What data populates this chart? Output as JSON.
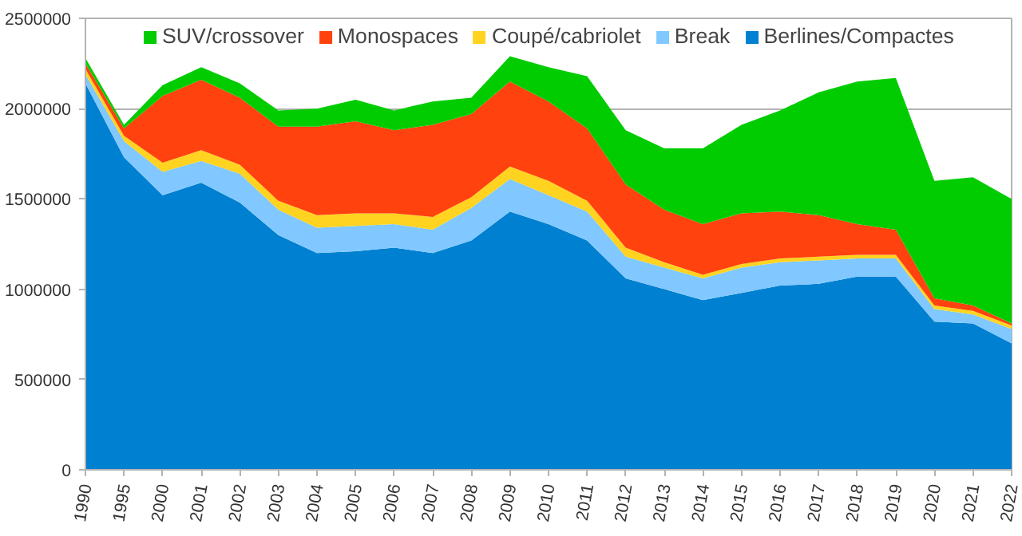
{
  "chart_data": {
    "type": "area",
    "stacked": true,
    "categories": [
      "1990",
      "1995",
      "2000",
      "2001",
      "2002",
      "2003",
      "2004",
      "2005",
      "2006",
      "2007",
      "2008",
      "2009",
      "2010",
      "2011",
      "2012",
      "2013",
      "2014",
      "2015",
      "2016",
      "2017",
      "2018",
      "2019",
      "2020",
      "2021",
      "2022"
    ],
    "series": [
      {
        "name": "Berlines/Compactes",
        "color": "#0080d0",
        "values": [
          2140000,
          1730000,
          1520000,
          1590000,
          1480000,
          1300000,
          1200000,
          1210000,
          1230000,
          1200000,
          1270000,
          1430000,
          1360000,
          1270000,
          1060000,
          1000000,
          940000,
          980000,
          1020000,
          1030000,
          1070000,
          1070000,
          820000,
          810000,
          700000
        ]
      },
      {
        "name": "Break",
        "color": "#80c8ff",
        "values": [
          50000,
          90000,
          130000,
          120000,
          160000,
          140000,
          140000,
          140000,
          130000,
          130000,
          180000,
          180000,
          160000,
          160000,
          120000,
          120000,
          120000,
          140000,
          130000,
          130000,
          100000,
          100000,
          70000,
          50000,
          80000
        ]
      },
      {
        "name": "Coupé/cabriolet",
        "color": "#ffd320",
        "values": [
          30000,
          30000,
          50000,
          60000,
          50000,
          50000,
          70000,
          70000,
          60000,
          70000,
          60000,
          70000,
          80000,
          60000,
          50000,
          30000,
          20000,
          20000,
          20000,
          20000,
          20000,
          20000,
          20000,
          20000,
          20000
        ]
      },
      {
        "name": "Monospaces",
        "color": "#ff420e",
        "values": [
          30000,
          40000,
          370000,
          390000,
          370000,
          410000,
          490000,
          510000,
          460000,
          510000,
          460000,
          470000,
          440000,
          400000,
          350000,
          290000,
          280000,
          280000,
          260000,
          230000,
          170000,
          140000,
          40000,
          30000,
          10000
        ]
      },
      {
        "name": "SUV/crossover",
        "color": "#00cc00",
        "values": [
          30000,
          20000,
          60000,
          70000,
          80000,
          90000,
          100000,
          120000,
          110000,
          130000,
          90000,
          140000,
          190000,
          290000,
          300000,
          340000,
          420000,
          490000,
          560000,
          680000,
          790000,
          840000,
          650000,
          710000,
          690000
        ]
      }
    ],
    "ylim": [
      0,
      2500000
    ],
    "yticks": [
      0,
      500000,
      1000000,
      1500000,
      2000000,
      2500000
    ],
    "grid": "y",
    "legend": "top"
  }
}
